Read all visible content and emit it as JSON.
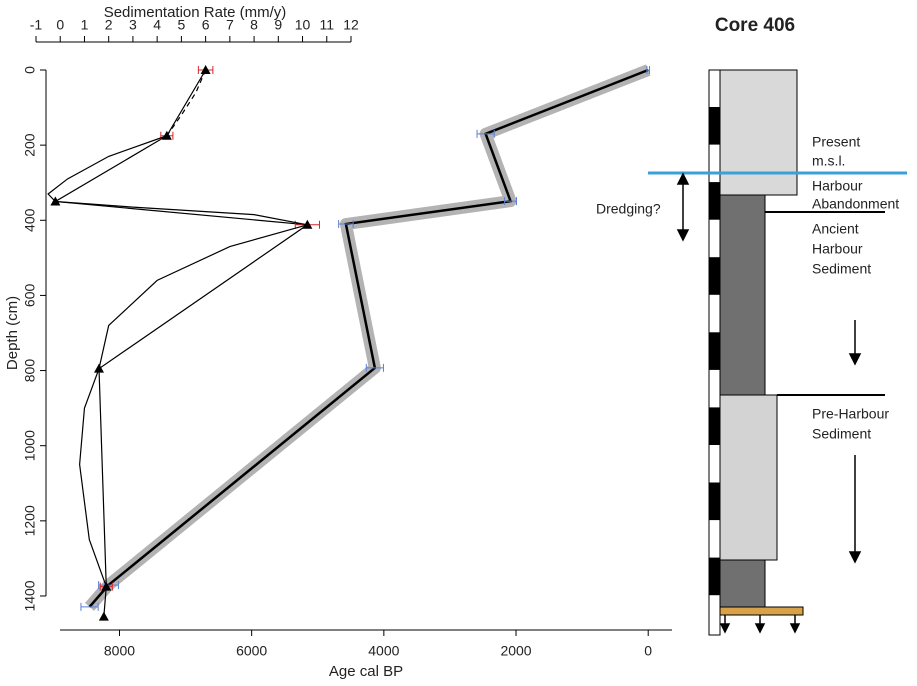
{
  "chart_data": {
    "type": "line",
    "title": "Core 406",
    "xlabel": "Age cal BP",
    "x2label": "Sedimentation Rate (mm/y)",
    "ylabel": "Depth (cm)",
    "ylim": [
      0,
      1475
    ],
    "yticks": [
      0,
      200,
      400,
      600,
      800,
      1000,
      1200,
      1400
    ],
    "y_inverted": true,
    "xlim": [
      8900,
      -360
    ],
    "xticks": [
      8000,
      6000,
      4000,
      2000,
      0
    ],
    "x2lim": [
      -1,
      12
    ],
    "x2ticks": [
      -1,
      0,
      1,
      2,
      3,
      4,
      5,
      6,
      7,
      8,
      9,
      10,
      11,
      12
    ],
    "series": [
      {
        "color": "#000000",
        "band_color": "#b3b3b3",
        "error_color": "#5b7fd6",
        "marker": "tick",
        "x": [
          0,
          2460,
          2083,
          4574,
          4136,
          8166,
          8453
        ],
        "values": [
          0,
          170,
          349,
          410,
          793,
          1371,
          1429
        ],
        "x_error": [
          20,
          130,
          90,
          110,
          130,
          150,
          130
        ]
      },
      {
        "color": "#000000",
        "error_color": "#d62728",
        "marker": "triangle",
        "axis": "x2",
        "x": [
          6,
          4.4,
          -0.2,
          10.2,
          1.6,
          1.9,
          1.8
        ],
        "values": [
          0,
          175,
          350,
          412,
          795,
          1375,
          1455
        ],
        "x_error": [
          0.3,
          0.25,
          0,
          0.5,
          0,
          0.25,
          0
        ]
      },
      {
        "color": "#000000",
        "dashed": true,
        "axis": "x2",
        "x": [
          6,
          5.6,
          5,
          4.4
        ],
        "values": [
          0,
          60,
          120,
          175
        ]
      },
      {
        "color": "#000000",
        "axis": "x2",
        "x": [
          4.4,
          2,
          0.3,
          -0.5,
          -0.2,
          3,
          8,
          10.2,
          7,
          4,
          2,
          1.6,
          1,
          0.8,
          1.2,
          1.9
        ],
        "values": [
          175,
          230,
          290,
          330,
          350,
          365,
          385,
          412,
          470,
          560,
          680,
          795,
          900,
          1050,
          1250,
          1375
        ]
      }
    ],
    "annotations": [
      "Present",
      "m.s.l.",
      "Harbour",
      "Abandonment",
      "Dredging?",
      "Ancient",
      "Harbour",
      "Sediment",
      "Pre-Harbour",
      "Sediment"
    ]
  }
}
